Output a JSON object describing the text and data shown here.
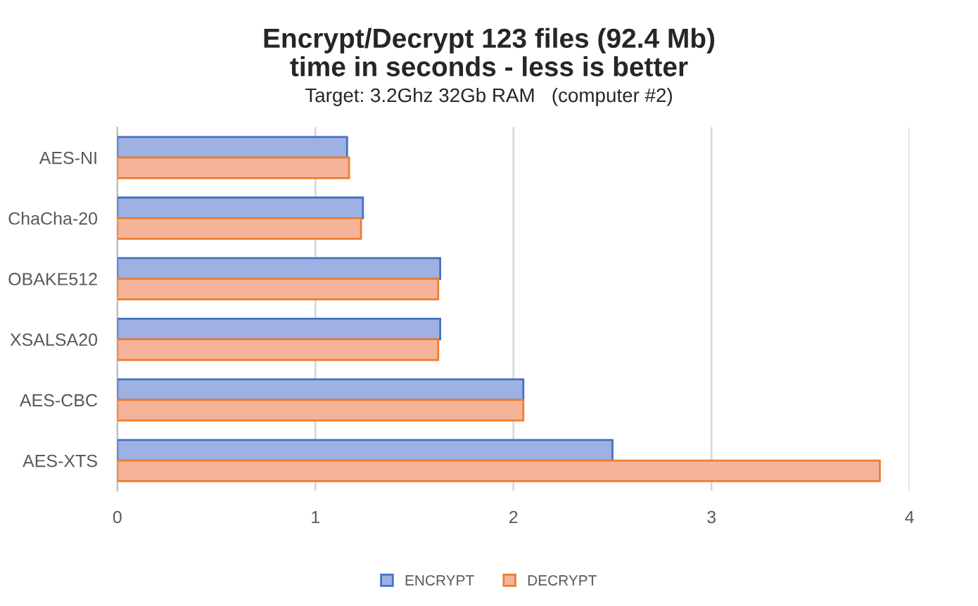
{
  "chart_data": {
    "type": "bar",
    "orientation": "horizontal",
    "title": "Encrypt/Decrypt 123 files (92.4 Mb)\ntime in seconds - less is better",
    "subtitle": "Target: 3.2Ghz 32Gb RAM   (computer #2)",
    "categories": [
      "AES-NI",
      "ChaCha-20",
      "OBAKE512",
      "XSALSA20",
      "AES-CBC",
      "AES-XTS"
    ],
    "series": [
      {
        "name": "ENCRYPT",
        "color": "#9fb1e2",
        "values": [
          1.16,
          1.24,
          1.63,
          1.63,
          2.05,
          2.5
        ]
      },
      {
        "name": "DECRYPT",
        "color": "#f5b49a",
        "values": [
          1.17,
          1.23,
          1.62,
          1.62,
          2.05,
          3.85
        ]
      }
    ],
    "xlim": [
      0,
      4
    ],
    "xticks": [
      0,
      1,
      2,
      3,
      4
    ],
    "grid": "x",
    "legend": "bottom"
  }
}
